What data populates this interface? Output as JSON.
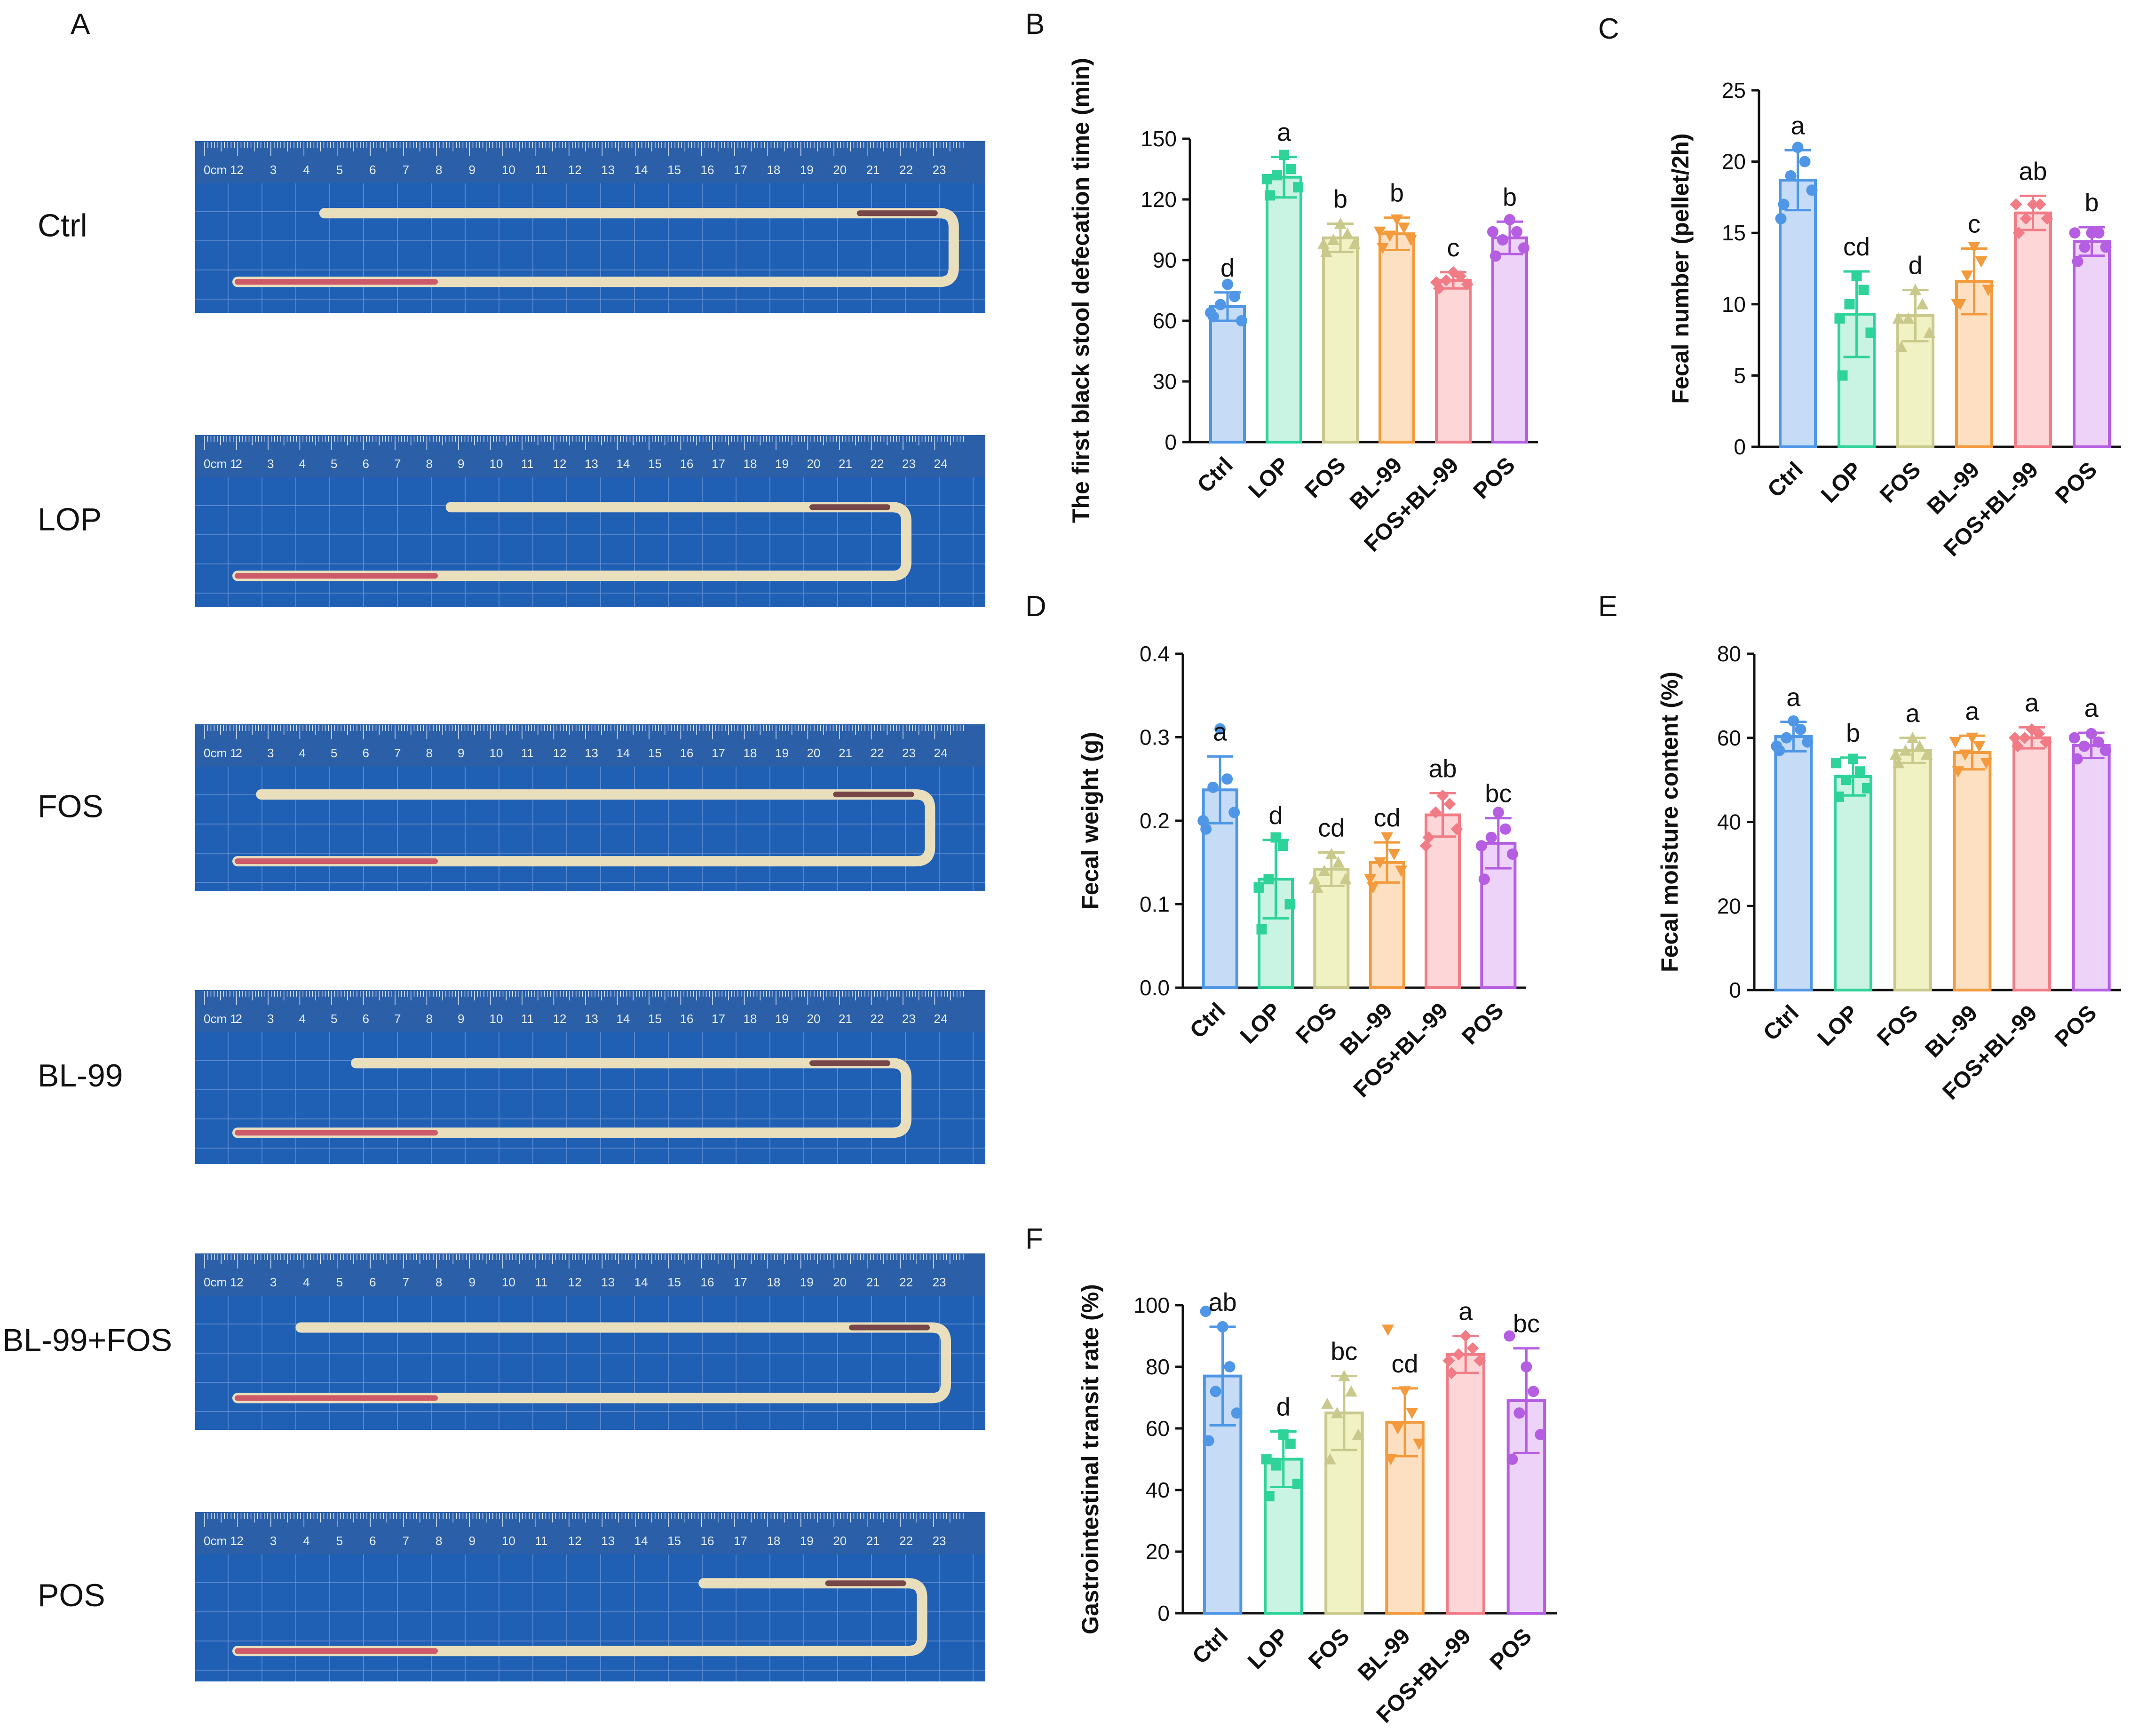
{
  "panel_a": {
    "letter": "A",
    "rows": [
      {
        "label": "Ctrl",
        "ruler": [
          "0cm 1",
          "2",
          "3",
          "4",
          "5",
          "6",
          "7",
          "8",
          "9",
          "10",
          "11",
          "12",
          "13",
          "14",
          "15",
          "16",
          "17",
          "18",
          "19",
          "20",
          "21",
          "22",
          "23"
        ]
      },
      {
        "label": "LOP",
        "ruler": [
          "0cm 1",
          "2",
          "3",
          "4",
          "5",
          "6",
          "7",
          "8",
          "9",
          "10",
          "11",
          "12",
          "13",
          "14",
          "15",
          "16",
          "17",
          "18",
          "19",
          "20",
          "21",
          "22",
          "23",
          "24"
        ]
      },
      {
        "label": "FOS",
        "ruler": [
          "0cm 1",
          "2",
          "3",
          "4",
          "5",
          "6",
          "7",
          "8",
          "9",
          "10",
          "11",
          "12",
          "13",
          "14",
          "15",
          "16",
          "17",
          "18",
          "19",
          "20",
          "21",
          "22",
          "23",
          "24"
        ]
      },
      {
        "label": "BL-99",
        "ruler": [
          "0cm 1",
          "2",
          "3",
          "4",
          "5",
          "6",
          "7",
          "8",
          "9",
          "10",
          "11",
          "12",
          "13",
          "14",
          "15",
          "16",
          "17",
          "18",
          "19",
          "20",
          "21",
          "22",
          "23",
          "24"
        ]
      },
      {
        "label": "BL-99+FOS",
        "ruler": [
          "0cm 1",
          "2",
          "3",
          "4",
          "5",
          "6",
          "7",
          "8",
          "9",
          "10",
          "11",
          "12",
          "13",
          "14",
          "15",
          "16",
          "17",
          "18",
          "19",
          "20",
          "21",
          "22",
          "23"
        ]
      },
      {
        "label": "POS",
        "ruler": [
          "0cm 1",
          "2",
          "3",
          "4",
          "5",
          "6",
          "7",
          "8",
          "9",
          "10",
          "11",
          "12",
          "13",
          "14",
          "15",
          "16",
          "17",
          "18",
          "19",
          "20",
          "21",
          "22",
          "23"
        ]
      }
    ]
  },
  "colors": {
    "series": [
      {
        "fill": "#c6dcf6",
        "stroke": "#4f97e6"
      },
      {
        "fill": "#c9f3e2",
        "stroke": "#2ed39a"
      },
      {
        "fill": "#f0f2c4",
        "stroke": "#c9c98c"
      },
      {
        "fill": "#fde0c2",
        "stroke": "#f39a3c"
      },
      {
        "fill": "#fdd6d8",
        "stroke": "#f17c86"
      },
      {
        "fill": "#ecd3f7",
        "stroke": "#b65ee2"
      }
    ],
    "ruler_bg": "#2b5fa8",
    "photo_bg": "#1f5fb4"
  },
  "chart_data": [
    {
      "panel": "B",
      "type": "bar",
      "categories": [
        "Ctrl",
        "LOP",
        "FOS",
        "BL-99",
        "FOS+BL-99",
        "POS"
      ],
      "values": [
        67,
        131,
        101,
        103,
        80,
        101
      ],
      "errors": [
        7,
        10,
        7,
        8,
        4,
        8
      ],
      "points": [
        [
          62,
          60,
          68,
          72,
          78,
          64
        ],
        [
          122,
          126,
          132,
          135,
          142,
          130
        ],
        [
          94,
          98,
          100,
          103,
          108,
          98
        ],
        [
          96,
          100,
          102,
          106,
          110,
          104
        ],
        [
          76,
          78,
          80,
          82,
          84,
          79
        ],
        [
          92,
          96,
          100,
          104,
          110,
          104
        ]
      ],
      "sig": [
        "d",
        "a",
        "b",
        "b",
        "c",
        "b"
      ],
      "ylabel": "The first black stool defecation time (min)",
      "ylim": [
        0,
        150
      ],
      "yticks": [
        0,
        30,
        60,
        90,
        120,
        150
      ],
      "ytick_labels": [
        "0",
        "30",
        "60",
        "90",
        "120",
        "150"
      ]
    },
    {
      "panel": "C",
      "type": "bar",
      "categories": [
        "Ctrl",
        "LOP",
        "FOS",
        "BL-99",
        "FOS+BL-99",
        "POS"
      ],
      "values": [
        18.7,
        9.3,
        9.2,
        11.6,
        16.4,
        14.4
      ],
      "errors": [
        2.1,
        3.0,
        1.8,
        2.3,
        1.2,
        1.0
      ],
      "points": [
        [
          17,
          18,
          19,
          20,
          21,
          16
        ],
        [
          5,
          8,
          10,
          11,
          12,
          9
        ],
        [
          7,
          8,
          9,
          10,
          11,
          9
        ],
        [
          10,
          11,
          12,
          13,
          14,
          10
        ],
        [
          15,
          16,
          16,
          17,
          17,
          17
        ],
        [
          13,
          14,
          14,
          15,
          15,
          15
        ]
      ],
      "sig": [
        "a",
        "cd",
        "d",
        "c",
        "ab",
        "b"
      ],
      "ylabel": "Fecal number (pellet/2h)",
      "ylim": [
        0,
        25
      ],
      "yticks": [
        0,
        5,
        10,
        15,
        20,
        25
      ],
      "ytick_labels": [
        "0",
        "5",
        "10",
        "15",
        "20",
        "25"
      ]
    },
    {
      "panel": "D",
      "type": "bar",
      "categories": [
        "Ctrl",
        "LOP",
        "FOS",
        "BL-99",
        "FOS+BL-99",
        "POS"
      ],
      "values": [
        0.237,
        0.13,
        0.142,
        0.15,
        0.207,
        0.173
      ],
      "errors": [
        0.04,
        0.047,
        0.02,
        0.024,
        0.026,
        0.03
      ],
      "points": [
        [
          0.19,
          0.21,
          0.24,
          0.25,
          0.31,
          0.2
        ],
        [
          0.07,
          0.1,
          0.13,
          0.17,
          0.18,
          0.12
        ],
        [
          0.12,
          0.13,
          0.14,
          0.15,
          0.16,
          0.13
        ],
        [
          0.12,
          0.14,
          0.15,
          0.16,
          0.18,
          0.13
        ],
        [
          0.18,
          0.19,
          0.21,
          0.22,
          0.23,
          0.17
        ],
        [
          0.13,
          0.16,
          0.18,
          0.19,
          0.21,
          0.17
        ]
      ],
      "sig": [
        "a",
        "d",
        "cd",
        "cd",
        "ab",
        "bc"
      ],
      "ylabel": "Fecal weight (g)",
      "ylim": [
        0,
        0.4
      ],
      "yticks": [
        0,
        0.1,
        0.2,
        0.3,
        0.4
      ],
      "ytick_labels": [
        "0.0",
        "0.1",
        "0.2",
        "0.3",
        "0.4"
      ]
    },
    {
      "panel": "E",
      "type": "bar",
      "categories": [
        "Ctrl",
        "LOP",
        "FOS",
        "BL-99",
        "FOS+BL-99",
        "POS"
      ],
      "values": [
        60.3,
        50.8,
        57.0,
        56.5,
        60.0,
        58.2
      ],
      "errors": [
        3.5,
        4.5,
        3.0,
        4.0,
        2.5,
        3.0
      ],
      "points": [
        [
          57,
          59,
          60,
          62,
          64,
          58
        ],
        [
          46,
          48,
          50,
          52,
          55,
          54
        ],
        [
          54,
          56,
          57,
          58,
          60,
          56
        ],
        [
          52,
          54,
          56,
          58,
          60,
          59
        ],
        [
          58,
          59,
          60,
          61,
          62,
          60
        ],
        [
          55,
          57,
          58,
          59,
          61,
          60
        ]
      ],
      "sig": [
        "a",
        "b",
        "a",
        "a",
        "a",
        "a"
      ],
      "ylabel": "Fecal moisture content (%)",
      "ylim": [
        0,
        80
      ],
      "yticks": [
        0,
        20,
        40,
        60,
        80
      ],
      "ytick_labels": [
        "0",
        "20",
        "40",
        "60",
        "80"
      ]
    },
    {
      "panel": "F",
      "type": "bar",
      "categories": [
        "Ctrl",
        "LOP",
        "FOS",
        "BL-99",
        "FOS+BL-99",
        "POS"
      ],
      "values": [
        77,
        50,
        65,
        62,
        84,
        69
      ],
      "errors": [
        16,
        9,
        12,
        11,
        6,
        17
      ],
      "points": [
        [
          56,
          65,
          72,
          80,
          93,
          98
        ],
        [
          38,
          42,
          48,
          55,
          58,
          50
        ],
        [
          50,
          58,
          65,
          72,
          77,
          68
        ],
        [
          50,
          55,
          60,
          65,
          72,
          92
        ],
        [
          78,
          82,
          84,
          86,
          90,
          82
        ],
        [
          50,
          58,
          65,
          72,
          80,
          90
        ]
      ],
      "sig": [
        "ab",
        "d",
        "bc",
        "cd",
        "a",
        "bc"
      ],
      "ylabel": "Gastrointestinal transit rate (%)",
      "ylim": [
        0,
        100
      ],
      "yticks": [
        0,
        20,
        40,
        60,
        80,
        100
      ],
      "ytick_labels": [
        "0",
        "20",
        "40",
        "60",
        "80",
        "100"
      ]
    }
  ]
}
